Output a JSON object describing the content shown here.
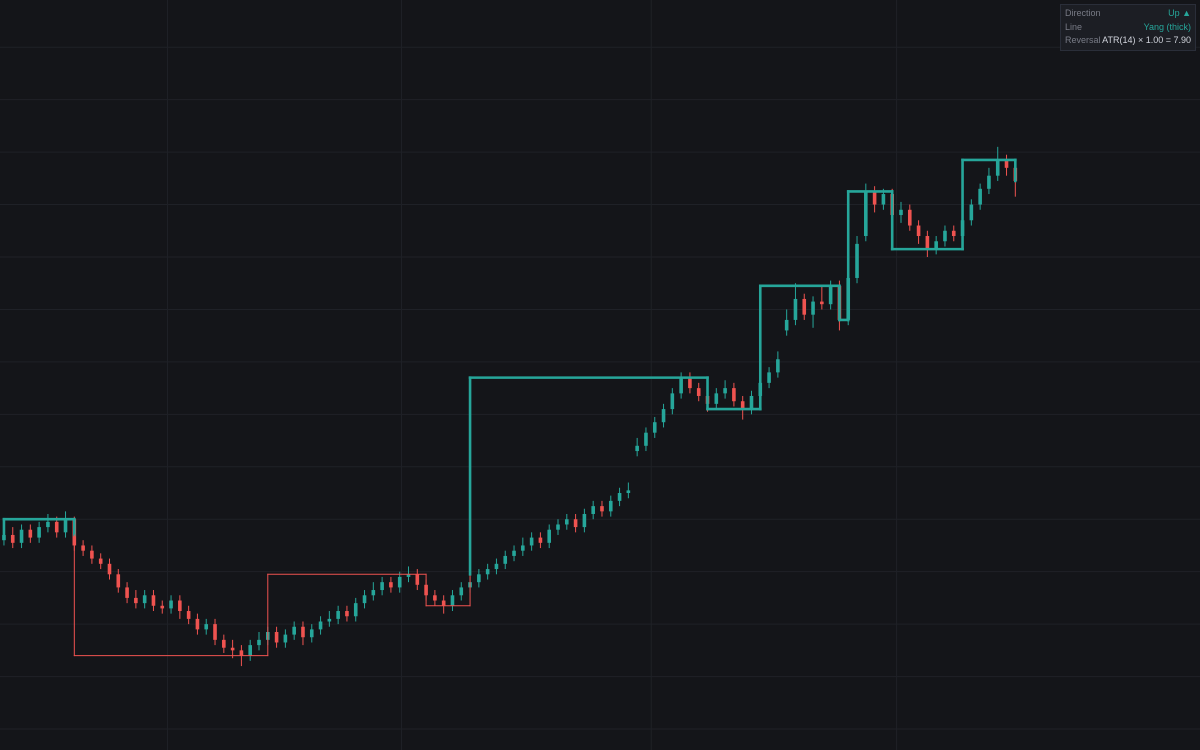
{
  "chart_data": {
    "type": "candlestick",
    "candles": [
      [
        152,
        156,
        150,
        154
      ],
      [
        154,
        157,
        149,
        151
      ],
      [
        151,
        158,
        149,
        156
      ],
      [
        156,
        158,
        151,
        153
      ],
      [
        153,
        159,
        151,
        157
      ],
      [
        157,
        162,
        155,
        159
      ],
      [
        159,
        161,
        153,
        155
      ],
      [
        155,
        163,
        153,
        160
      ],
      [
        160,
        161,
        148,
        150
      ],
      [
        150,
        152,
        146,
        148
      ],
      [
        148,
        150,
        143,
        145
      ],
      [
        145,
        147,
        141,
        143
      ],
      [
        143,
        145,
        137,
        139
      ],
      [
        139,
        141,
        132,
        134
      ],
      [
        134,
        136,
        128,
        130
      ],
      [
        130,
        133,
        126,
        128
      ],
      [
        128,
        133,
        126,
        131
      ],
      [
        131,
        133,
        125,
        127
      ],
      [
        127,
        129,
        124,
        126
      ],
      [
        126,
        131,
        124,
        129
      ],
      [
        129,
        131,
        122,
        125
      ],
      [
        125,
        127,
        120,
        122
      ],
      [
        122,
        124,
        116,
        118
      ],
      [
        118,
        122,
        116,
        120
      ],
      [
        120,
        122,
        112,
        114
      ],
      [
        114,
        116,
        109,
        111
      ],
      [
        111,
        114,
        107,
        110
      ],
      [
        110,
        112,
        104,
        108
      ],
      [
        108,
        114,
        106,
        112
      ],
      [
        112,
        117,
        110,
        114
      ],
      [
        114,
        119,
        112,
        117
      ],
      [
        117,
        119,
        111,
        113
      ],
      [
        113,
        118,
        111,
        116
      ],
      [
        116,
        121,
        114,
        119
      ],
      [
        119,
        121,
        112,
        115
      ],
      [
        115,
        120,
        113,
        118
      ],
      [
        118,
        123,
        116,
        121
      ],
      [
        121,
        125,
        119,
        122
      ],
      [
        122,
        127,
        120,
        125
      ],
      [
        125,
        127,
        121,
        123
      ],
      [
        123,
        130,
        121,
        128
      ],
      [
        128,
        133,
        126,
        131
      ],
      [
        131,
        136,
        129,
        133
      ],
      [
        133,
        138,
        131,
        136
      ],
      [
        136,
        138,
        132,
        134
      ],
      [
        134,
        140,
        132,
        138
      ],
      [
        138,
        142,
        136,
        139
      ],
      [
        139,
        141,
        133,
        135
      ],
      [
        135,
        137,
        129,
        131
      ],
      [
        131,
        133,
        127,
        129
      ],
      [
        129,
        131,
        124,
        127
      ],
      [
        127,
        133,
        125,
        131
      ],
      [
        131,
        136,
        129,
        134
      ],
      [
        134,
        138,
        132,
        136
      ],
      [
        136,
        141,
        134,
        139
      ],
      [
        139,
        143,
        137,
        141
      ],
      [
        141,
        145,
        139,
        143
      ],
      [
        143,
        148,
        141,
        146
      ],
      [
        146,
        150,
        144,
        148
      ],
      [
        148,
        153,
        146,
        150
      ],
      [
        150,
        155,
        148,
        153
      ],
      [
        153,
        155,
        149,
        151
      ],
      [
        151,
        158,
        149,
        156
      ],
      [
        156,
        160,
        154,
        158
      ],
      [
        158,
        162,
        156,
        160
      ],
      [
        160,
        162,
        155,
        157
      ],
      [
        157,
        164,
        155,
        162
      ],
      [
        162,
        167,
        160,
        165
      ],
      [
        165,
        167,
        161,
        163
      ],
      [
        163,
        169,
        161,
        167
      ],
      [
        167,
        172,
        165,
        170
      ],
      [
        170,
        174,
        168,
        171
      ],
      [
        186,
        191,
        184,
        188
      ],
      [
        188,
        195,
        186,
        193
      ],
      [
        193,
        199,
        191,
        197
      ],
      [
        197,
        204,
        195,
        202
      ],
      [
        202,
        210,
        200,
        208
      ],
      [
        208,
        216,
        206,
        214
      ],
      [
        214,
        216,
        208,
        210
      ],
      [
        210,
        212,
        205,
        207
      ],
      [
        207,
        209,
        201,
        204
      ],
      [
        204,
        210,
        202,
        208
      ],
      [
        208,
        213,
        206,
        210
      ],
      [
        210,
        212,
        203,
        205
      ],
      [
        205,
        207,
        198,
        202
      ],
      [
        202,
        209,
        200,
        207
      ],
      [
        207,
        214,
        205,
        212
      ],
      [
        212,
        218,
        210,
        216
      ],
      [
        216,
        224,
        214,
        221
      ],
      [
        232,
        240,
        230,
        236
      ],
      [
        236,
        250,
        234,
        244
      ],
      [
        244,
        246,
        236,
        238
      ],
      [
        238,
        245,
        233,
        243
      ],
      [
        243,
        249,
        240,
        242
      ],
      [
        242,
        251,
        240,
        249
      ],
      [
        249,
        251,
        232,
        236
      ],
      [
        236,
        254,
        234,
        252
      ],
      [
        252,
        268,
        250,
        265
      ],
      [
        268,
        288,
        266,
        285
      ],
      [
        285,
        287,
        277,
        280
      ],
      [
        280,
        286,
        278,
        284
      ],
      [
        284,
        286,
        274,
        276
      ],
      [
        276,
        281,
        273,
        278
      ],
      [
        278,
        280,
        270,
        272
      ],
      [
        272,
        274,
        265,
        268
      ],
      [
        268,
        270,
        260,
        263
      ],
      [
        263,
        268,
        261,
        266
      ],
      [
        266,
        272,
        264,
        270
      ],
      [
        270,
        272,
        266,
        268
      ],
      [
        268,
        277,
        266,
        274
      ],
      [
        274,
        282,
        272,
        280
      ],
      [
        280,
        288,
        278,
        286
      ],
      [
        286,
        294,
        284,
        291
      ],
      [
        291,
        302,
        289,
        297
      ],
      [
        297,
        299,
        291,
        294
      ],
      [
        294,
        296,
        283,
        289
      ]
    ],
    "up_color": "#26a69a",
    "down_color": "#ef5350",
    "xlim": [
      -0.45,
      136
    ],
    "xticks": [
      18.6,
      45.2,
      73.6,
      101.5
    ],
    "ylim": [
      72,
      358
    ],
    "yticks": [
      80,
      100,
      120,
      140,
      160,
      180,
      200,
      220,
      240,
      260,
      280,
      300,
      320,
      340
    ],
    "grid": true,
    "kagi": {
      "x": [
        0,
        0,
        8,
        8,
        8,
        30,
        30,
        48,
        48,
        53,
        53,
        53,
        80,
        80,
        86,
        86,
        95,
        95,
        96,
        96,
        101,
        101,
        109,
        109,
        115,
        115
      ],
      "y": [
        154,
        160,
        160,
        154,
        108,
        108,
        139,
        139,
        127,
        127,
        139,
        214,
        214,
        202,
        202,
        249,
        249,
        236,
        236,
        285,
        285,
        263,
        263,
        297,
        297,
        289
      ],
      "thick": [
        true,
        true,
        true,
        false,
        false,
        false,
        false,
        false,
        false,
        false,
        true,
        true,
        true,
        true,
        true,
        true,
        true,
        true,
        true,
        true,
        true,
        true,
        true,
        true,
        true
      ],
      "thick_color": "#26a69a",
      "thin_color": "#ef5350"
    }
  },
  "info_box": {
    "rows": [
      {
        "label": "Direction",
        "value": "Up ▲",
        "color": "#26a69a"
      },
      {
        "label": "Line",
        "value": "Yang (thick)",
        "color": "#26a69a"
      },
      {
        "label": "Reversal",
        "value": "ATR(14) × 1.00 = 7.90",
        "color": "#d1d4dc"
      }
    ]
  }
}
